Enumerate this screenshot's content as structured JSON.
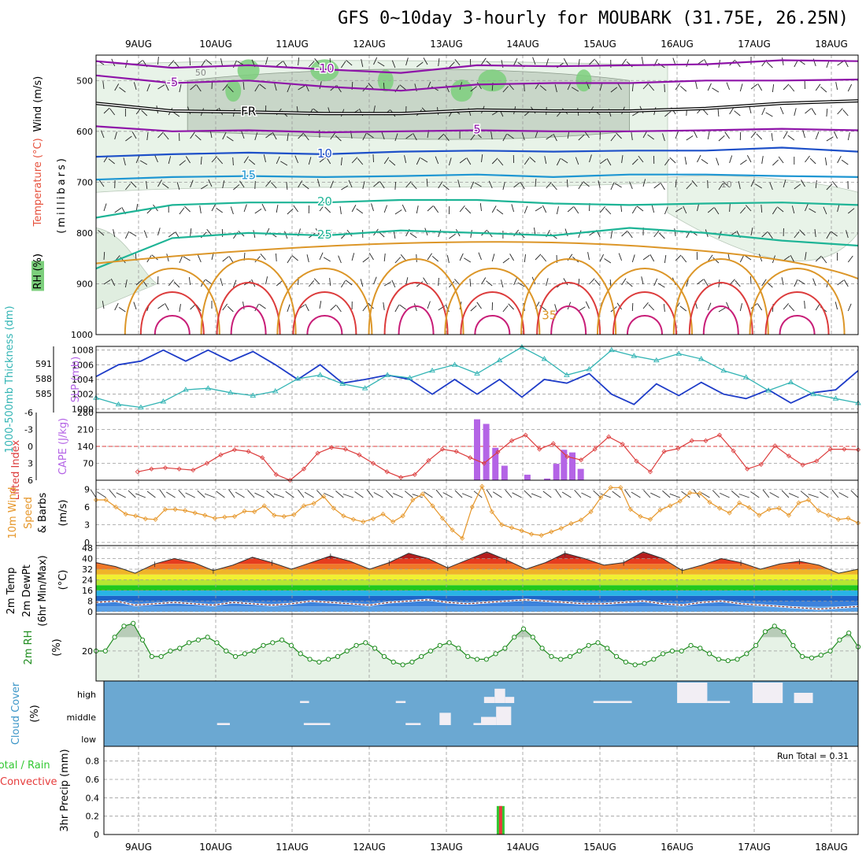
{
  "title": "GFS 0~10day 3-hourly for MOUBARK (31.75E, 26.25N)",
  "date_labels": [
    "9AUG",
    "10AUG",
    "11AUG",
    "12AUG",
    "13AUG",
    "14AUG",
    "15AUG",
    "16AUG",
    "17AUG",
    "18AUG"
  ],
  "run_total": "Run Total = 0.31",
  "colors": {
    "temp_purple": "#8e14a8",
    "temp_blue": "#1e50c8",
    "temp_cyan": "#1e96d2",
    "temp_teal": "#1eb496",
    "temp_orange": "#dc9628",
    "temp_red": "#dc3c3c",
    "slp": "#1e3cc8",
    "thickness": "#32b4b4",
    "cape": "#b464e6",
    "lifted": "#dc3c3c",
    "wind10m": "#e69628",
    "rh_green": "#1e8c1e",
    "cloud_blue": "#6ba8d2",
    "precip_green": "#32c832"
  },
  "chart_data": [
    {
      "type": "contour",
      "panel": "upper-air",
      "ylabel_parts": [
        "Wind",
        "(m/s)",
        "Temperature",
        "(°C)",
        "RH",
        "(%)"
      ],
      "ylabel_units": "(millibars)",
      "y_ticks": [
        "500",
        "600",
        "700",
        "800",
        "900",
        "1000"
      ],
      "ylim": [
        450,
        1000
      ],
      "temperature_contours": [
        {
          "label": "-10",
          "level_mb": [
            462,
            475,
            470,
            478,
            485,
            470,
            472,
            470,
            468,
            460,
            462
          ]
        },
        {
          "label": "-5",
          "level_mb": [
            490,
            505,
            500,
            512,
            520,
            508,
            505,
            505,
            500,
            500,
            498
          ]
        },
        {
          "label": "FR",
          "level_mb": [
            545,
            560,
            562,
            565,
            565,
            558,
            560,
            560,
            555,
            545,
            540
          ]
        },
        {
          "label": "5",
          "level_mb": [
            590,
            600,
            598,
            602,
            600,
            598,
            600,
            600,
            598,
            595,
            598
          ]
        },
        {
          "label": "10",
          "level_mb": [
            650,
            645,
            642,
            645,
            640,
            638,
            640,
            638,
            638,
            632,
            640
          ]
        },
        {
          "label": "15",
          "level_mb": [
            695,
            690,
            688,
            690,
            688,
            685,
            690,
            685,
            685,
            688,
            690
          ]
        },
        {
          "label": "20",
          "level_mb": [
            770,
            745,
            740,
            740,
            735,
            735,
            742,
            745,
            742,
            740,
            745
          ]
        },
        {
          "label": "25",
          "level_mb": [
            870,
            810,
            800,
            805,
            795,
            800,
            805,
            790,
            800,
            815,
            825
          ]
        }
      ],
      "contour_labels": [
        "-10",
        "-5",
        "FR",
        "5",
        "10",
        "15",
        "20",
        "25",
        "35",
        "50",
        "10"
      ]
    },
    {
      "type": "line",
      "panel": "slp-thickness",
      "ylabel_left": "1000-500mb Thickness (dm)",
      "ylabel_right": "SLP (mb)",
      "left_ticks": [
        "591",
        "588",
        "585"
      ],
      "right_ticks": [
        "1008",
        "1006",
        "1004",
        "1002",
        "1000"
      ],
      "right_ylim": [
        999.5,
        1008.5
      ],
      "series": [
        {
          "values": [
            1004.4,
            1006,
            1006.5,
            1008,
            1006.5,
            1008,
            1006.5,
            1007.8,
            1006,
            1004,
            1006,
            1003.5,
            1004,
            1004.6,
            1004,
            1002,
            1004,
            1002,
            1004,
            1001.6,
            1004,
            1003.5,
            1004.8,
            1002,
            1000.6,
            1003.4,
            1001.8,
            1003.6,
            1002,
            1001.4,
            1002.6,
            1000.8,
            1002.2,
            1002.6,
            1005.2
          ]
        },
        {
          "values": [
            1001.5,
            1000.6,
            1000.2,
            1001,
            1002.6,
            1002.8,
            1002.2,
            1001.8,
            1002.4,
            1004.1,
            1004.6,
            1003.4,
            1002.8,
            1004.6,
            1004.2,
            1005.2,
            1006,
            1004.8,
            1006.6,
            1008.4,
            1006.8,
            1004.6,
            1005.4,
            1008,
            1007.2,
            1006.6,
            1007.5,
            1006.8,
            1005.2,
            1004.3,
            1002.5,
            1003.6,
            1002,
            1001.4,
            1000.8
          ]
        }
      ]
    },
    {
      "type": "bar+line",
      "panel": "cape-lifted",
      "ylabel_left": "Lifted Index",
      "ylabel_right": "CAPE (J/kg)",
      "left_ticks": [
        "-6",
        "-3",
        "0",
        "3",
        "6"
      ],
      "right_ticks": [
        "280",
        "210",
        "140",
        "70"
      ],
      "lifted_ylim": [
        6,
        -6
      ],
      "cape_ylim": [
        0,
        280
      ],
      "lifted_index": [
        null,
        null,
        null,
        4.5,
        4,
        3.8,
        4,
        4.2,
        3,
        1.5,
        0.6,
        0.9,
        2,
        5,
        6,
        4,
        1.2,
        0.2,
        0.5,
        1.5,
        3,
        4.5,
        5.5,
        5,
        2.5,
        0.5,
        0.9,
        2,
        3,
        1,
        -1,
        -2,
        0.5,
        -0.5,
        1.8,
        2.4,
        0.5,
        -1.7,
        -0.4,
        2.6,
        4.5,
        0.9,
        0.4,
        -1,
        -1,
        -2,
        0.8,
        4,
        3.2,
        -0.1,
        1.7,
        3.3,
        2.6,
        0.5,
        0.5,
        0.6
      ],
      "cape_bars": [
        {
          "x_frac": 0.5,
          "value": 252
        },
        {
          "x_frac": 0.512,
          "value": 233
        },
        {
          "x_frac": 0.524,
          "value": 134
        },
        {
          "x_frac": 0.536,
          "value": 60
        },
        {
          "x_frac": 0.566,
          "value": 23
        },
        {
          "x_frac": 0.592,
          "value": 7
        },
        {
          "x_frac": 0.604,
          "value": 68
        },
        {
          "x_frac": 0.614,
          "value": 126
        },
        {
          "x_frac": 0.625,
          "value": 115
        },
        {
          "x_frac": 0.636,
          "value": 47
        }
      ]
    },
    {
      "type": "line",
      "panel": "wind10m",
      "ylabel_parts": [
        "10m Wind",
        "Speed",
        "& Barbs"
      ],
      "ylabel_units": "(m/s)",
      "y_ticks": [
        "9",
        "6",
        "3",
        "0"
      ],
      "ylim": [
        0,
        10
      ],
      "values": [
        7.2,
        7.2,
        6,
        4.8,
        4.5,
        4,
        3.9,
        5.6,
        5.6,
        5.4,
        5,
        4.6,
        4.1,
        4.3,
        4.4,
        5.3,
        5.2,
        6.2,
        4.6,
        4.4,
        4.7,
        6.2,
        6.6,
        7.8,
        5.8,
        4.5,
        3.9,
        3.5,
        4,
        4.8,
        3.5,
        4.5,
        7.2,
        8.2,
        6.2,
        4.1,
        2.1,
        0.7,
        6,
        9.5,
        5.2,
        3,
        2.5,
        2,
        1.4,
        1.2,
        1.8,
        2.4,
        3.2,
        3.8,
        5.2,
        7.6,
        9.3,
        9.3,
        5.6,
        4.4,
        3.9,
        5.5,
        6.2,
        7,
        8.4,
        8.3,
        6.8,
        5.8,
        5,
        6.7,
        5.9,
        4.6,
        5.6,
        5.8,
        4.6,
        6.7,
        7.2,
        5.4,
        4.6,
        3.9,
        4.1,
        3.3
      ]
    },
    {
      "type": "area",
      "panel": "temp-dewpt",
      "ylabel_parts": [
        "2m Temp",
        "2m DewPt",
        "(6hr Min/Max)"
      ],
      "ylabel_units": "(°C)",
      "y_ticks": [
        "48",
        "40",
        "32",
        "24",
        "16",
        "8",
        "0"
      ],
      "ylim": [
        0,
        48
      ],
      "temp_values": [
        37,
        34,
        29,
        36,
        40,
        37,
        31,
        35,
        41,
        37,
        32,
        37,
        42,
        38,
        32,
        37,
        44,
        40,
        33,
        39,
        45,
        39,
        32,
        37,
        44,
        40,
        35,
        37,
        45,
        40,
        31,
        35,
        40,
        37,
        32,
        36,
        38,
        35,
        29,
        32
      ],
      "dewpoint_values": [
        7,
        8,
        5,
        6,
        7,
        6,
        5,
        7,
        6,
        5,
        6,
        8,
        7,
        6,
        5,
        7,
        8,
        9,
        7,
        6,
        7,
        8,
        9,
        8,
        7,
        6,
        6,
        7,
        8,
        6,
        5,
        7,
        8,
        6,
        5,
        4,
        3,
        2,
        3,
        4
      ]
    },
    {
      "type": "area",
      "panel": "rh2m",
      "ylabel": "2m RH",
      "ylabel_units": "(%)",
      "y_ticks": [
        "20"
      ],
      "ylim": [
        0,
        45
      ],
      "values": [
        20,
        20,
        30,
        38,
        40,
        28,
        16,
        16,
        20,
        22,
        26,
        28,
        30,
        26,
        20,
        16,
        18,
        20,
        24,
        26,
        28,
        24,
        18,
        14,
        12,
        14,
        16,
        20,
        24,
        26,
        22,
        16,
        12,
        10,
        12,
        16,
        20,
        24,
        26,
        22,
        16,
        14,
        14,
        18,
        22,
        30,
        36,
        30,
        22,
        16,
        14,
        16,
        20,
        24,
        26,
        22,
        16,
        12,
        10,
        11,
        14,
        18,
        20,
        20,
        24,
        22,
        18,
        14,
        13,
        14,
        18,
        24,
        34,
        38,
        34,
        24,
        16,
        15,
        17,
        20,
        28,
        33,
        23
      ]
    },
    {
      "type": "heatmap",
      "panel": "cloud",
      "ylabel": "Cloud Cover",
      "ylabel_units": "(%)",
      "y_ticks": [
        "high",
        "middle",
        "low"
      ],
      "cloud_blocks": [
        {
          "x0": 0.26,
          "x1": 0.272,
          "level": "high",
          "size": 0.1
        },
        {
          "x0": 0.387,
          "x1": 0.4,
          "level": "high",
          "size": 0.1
        },
        {
          "x0": 0.504,
          "x1": 0.518,
          "level": "high",
          "size": 0.3
        },
        {
          "x0": 0.518,
          "x1": 0.532,
          "level": "high",
          "size": 0.7
        },
        {
          "x0": 0.532,
          "x1": 0.544,
          "level": "high",
          "size": 0.3
        },
        {
          "x0": 0.649,
          "x1": 0.7,
          "level": "high",
          "size": 0.1
        },
        {
          "x0": 0.76,
          "x1": 0.8,
          "level": "high",
          "size": 1
        },
        {
          "x0": 0.8,
          "x1": 0.83,
          "level": "high",
          "size": 0.1
        },
        {
          "x0": 0.86,
          "x1": 0.9,
          "level": "high",
          "size": 1
        },
        {
          "x0": 0.915,
          "x1": 0.94,
          "level": "high",
          "size": 0.5
        },
        {
          "x0": 0.15,
          "x1": 0.167,
          "level": "middle",
          "size": 0.1
        },
        {
          "x0": 0.265,
          "x1": 0.3,
          "level": "middle",
          "size": 0.1
        },
        {
          "x0": 0.4,
          "x1": 0.42,
          "level": "middle",
          "size": 0.1
        },
        {
          "x0": 0.445,
          "x1": 0.46,
          "level": "middle",
          "size": 0.6
        },
        {
          "x0": 0.49,
          "x1": 0.5,
          "level": "middle",
          "size": 0.1
        },
        {
          "x0": 0.5,
          "x1": 0.52,
          "level": "middle",
          "size": 0.4
        },
        {
          "x0": 0.52,
          "x1": 0.54,
          "level": "middle",
          "size": 0.9
        }
      ]
    },
    {
      "type": "bar",
      "panel": "precip",
      "ylabel_parts": [
        "Total / Rain",
        "Convective"
      ],
      "ylabel_units": "3hr Precip (mm)",
      "y_ticks": [
        "0.8",
        "0.6",
        "0.4",
        "0.2",
        "0"
      ],
      "ylim": [
        0,
        0.96
      ],
      "bars": [
        {
          "x_frac": 0.526,
          "total": 0.31,
          "convective": 0.31
        }
      ]
    }
  ]
}
